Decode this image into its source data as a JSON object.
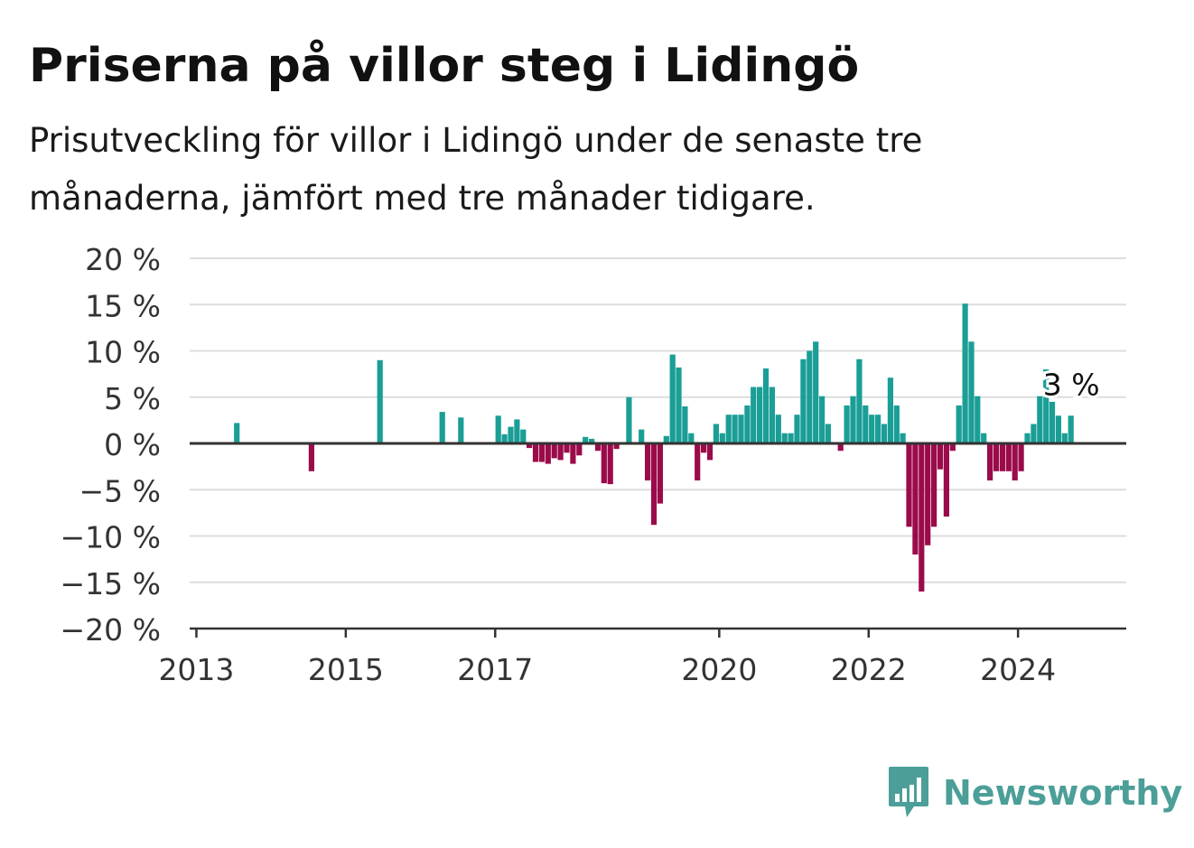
{
  "header": {
    "title": "Priserna på villor steg i Lidingö",
    "subtitle": "Prisutveckling för villor i Lidingö under de senaste tre månaderna, jämfört med tre månader tidigare."
  },
  "brand": {
    "name": "Newsworthy",
    "icon": "bar-chart-speech-bubble-icon",
    "color": "#4b9f98"
  },
  "colors": {
    "positive": "#1a9e96",
    "negative": "#9b0b4a",
    "grid": "#dddddd",
    "axis": "#333333"
  },
  "chart_data": {
    "type": "bar",
    "x_is_time": true,
    "x_ticks": [
      "2013",
      "2015",
      "2017",
      "2020",
      "2022",
      "2024"
    ],
    "y_ticks": [
      "20 %",
      "15 %",
      "10 %",
      "5 %",
      "0 %",
      "−5 %",
      "−10 %",
      "−15 %",
      "−20 %"
    ],
    "ylim": [
      -20,
      20
    ],
    "grid": true,
    "annotation": {
      "text": "3 %",
      "x": "2024-08",
      "value": 3
    },
    "x": [
      "2013-06",
      "2014-06",
      "2015-05",
      "2016-03",
      "2016-06",
      "2017-00",
      "2017-01",
      "2017-02",
      "2017-03",
      "2017-04",
      "2017-05",
      "2017-06",
      "2017-07",
      "2017-08",
      "2017-09",
      "2017-10",
      "2017-11",
      "2018-00",
      "2018-01",
      "2018-02",
      "2018-03",
      "2018-04",
      "2018-05",
      "2018-06",
      "2018-07",
      "2018-09",
      "2018-11",
      "2019-00",
      "2019-01",
      "2019-02",
      "2019-03",
      "2019-04",
      "2019-05",
      "2019-06",
      "2019-07",
      "2019-08",
      "2019-09",
      "2019-10",
      "2019-11",
      "2020-00",
      "2020-01",
      "2020-02",
      "2020-03",
      "2020-04",
      "2020-05",
      "2020-06",
      "2020-07",
      "2020-08",
      "2020-09",
      "2020-10",
      "2020-11",
      "2021-00",
      "2021-01",
      "2021-02",
      "2021-03",
      "2021-04",
      "2021-05",
      "2021-07",
      "2021-08",
      "2021-09",
      "2021-10",
      "2021-11",
      "2022-00",
      "2022-01",
      "2022-02",
      "2022-03",
      "2022-04",
      "2022-05",
      "2022-06",
      "2022-07",
      "2022-08",
      "2022-09",
      "2022-10",
      "2022-11",
      "2023-00",
      "2023-01",
      "2023-02",
      "2023-03",
      "2023-04",
      "2023-05",
      "2023-06",
      "2023-07",
      "2023-08",
      "2023-09",
      "2023-10",
      "2023-11",
      "2024-00",
      "2024-01",
      "2024-02",
      "2024-03",
      "2024-04",
      "2024-05",
      "2024-06",
      "2024-07",
      "2024-08"
    ],
    "values": [
      2.2,
      -3,
      9,
      3.4,
      2.8,
      3,
      1,
      1.8,
      2.6,
      1.5,
      -0.5,
      -2,
      -2,
      -2.2,
      -1.6,
      -1.8,
      -1,
      -2.2,
      -1.3,
      0.7,
      0.5,
      -0.8,
      -4.3,
      -4.4,
      -0.6,
      5,
      1.5,
      -4,
      -8.8,
      -6.5,
      0.8,
      9.6,
      8.2,
      4,
      1.1,
      -4,
      -1,
      -1.8,
      2.1,
      1.1,
      3.1,
      3.1,
      3.1,
      4.1,
      6.1,
      6.1,
      8.1,
      6.1,
      3.1,
      1.1,
      1.1,
      3.1,
      9.1,
      10,
      11,
      5.1,
      2.1,
      -0.8,
      4.1,
      5.1,
      9.1,
      4.1,
      3.1,
      3.1,
      2.1,
      7.1,
      4.1,
      1.1,
      -9,
      -12,
      -16,
      -11,
      -9,
      -2.8,
      -7.9,
      -0.8,
      4.1,
      15.1,
      11,
      5.1,
      1.1,
      -4,
      -3,
      -3,
      -3,
      -4,
      -3,
      1.1,
      2.1,
      5.1,
      8,
      4.5,
      3,
      1.1,
      3
    ]
  }
}
